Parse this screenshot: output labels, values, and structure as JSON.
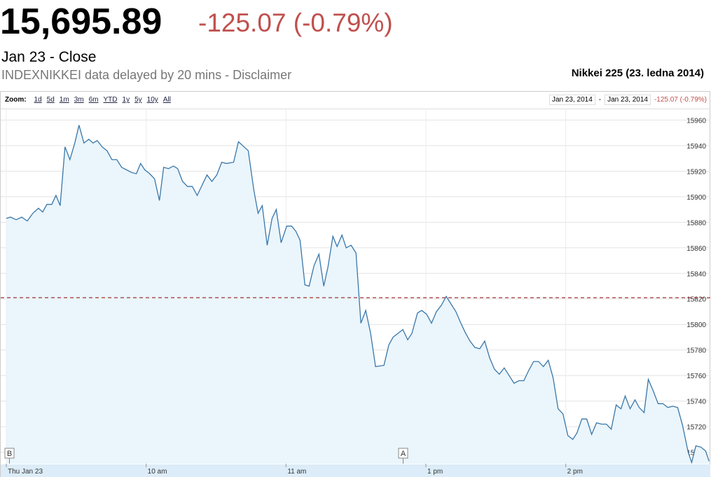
{
  "header": {
    "price": "15,695.89",
    "change": "-125.07 (-0.79%)",
    "date": "Jan 23 - Close",
    "source": "INDEXNIKKEI data delayed by 20 mins - Disclaimer",
    "chart_name": "Nikkei 225 (23. ledna 2014)"
  },
  "toolbar": {
    "zoom_label": "Zoom:",
    "zoom_options": [
      "1d",
      "5d",
      "1m",
      "3m",
      "6m",
      "YTD",
      "1y",
      "5y",
      "10y",
      "All"
    ],
    "range_start": "Jan 23, 2014",
    "range_separator": "-",
    "range_end": "Jan 23, 2014",
    "range_change": "-125.07 (-0.79%)"
  },
  "chart_data": {
    "type": "line",
    "color": "#3a77a8",
    "fill": "#eaf5fc",
    "grid": true,
    "annotations": [
      "B",
      "A"
    ],
    "reference_line": 15820.96,
    "reference_color": "#a03030",
    "xlim": [
      -2.4,
      302
    ],
    "ylim": [
      15691,
      15969
    ],
    "xticks": [
      {
        "value": 0,
        "label": "Thu Jan 23"
      },
      {
        "value": 60,
        "label": "10 am"
      },
      {
        "value": 120,
        "label": "11 am"
      },
      {
        "value": 180,
        "label": "1 pm"
      },
      {
        "value": 240,
        "label": "2 pm"
      }
    ],
    "yticks": [
      15700,
      15720,
      15740,
      15760,
      15780,
      15800,
      15820,
      15840,
      15860,
      15880,
      15900,
      15920,
      15940,
      15960
    ],
    "x": [
      0,
      1.8,
      4.2,
      6.6,
      9,
      11.4,
      13.8,
      15.6,
      17.4,
      19.5,
      21.3,
      23.1,
      25.2,
      27.3,
      29.4,
      31.2,
      33.3,
      35.4,
      37.2,
      39,
      41.1,
      43.2,
      45.3,
      47.4,
      49.5,
      51.6,
      53.7,
      55.8,
      57.6,
      59.4,
      61.5,
      63.6,
      65.7,
      67.5,
      69.6,
      71.7,
      73.5,
      75.6,
      77.7,
      79.8,
      81.9,
      84,
      86.1,
      88.2,
      90.3,
      92.4,
      94.5,
      97.5,
      99.6,
      102,
      103.8,
      106.2,
      108,
      109.8,
      111.9,
      114,
      115.8,
      117.9,
      120.3,
      122.4,
      124.2,
      126,
      128.1,
      129.9,
      132,
      134.1,
      136.2,
      138,
      140.1,
      141.9,
      144,
      145.8,
      147.9,
      150,
      152.1,
      154.2,
      156.3,
      158.4,
      162,
      164.1,
      165.9,
      168,
      170.1,
      172.2,
      174,
      176.4,
      178.2,
      180.3,
      182.4,
      184.5,
      186.6,
      188.7,
      190.8,
      192.9,
      195,
      196.8,
      198.9,
      201,
      203.1,
      205.2,
      207.3,
      209.4,
      211.5,
      213.6,
      215.7,
      217.8,
      219.9,
      222,
      224.1,
      226.2,
      228.3,
      230.4,
      232.5,
      234.6,
      236.7,
      238.8,
      240.9,
      243,
      244.8,
      246.9,
      249,
      251.1,
      253.2,
      255.3,
      257.4,
      259.5,
      261.6,
      263.7,
      265.5,
      267.6,
      269.7,
      271.5,
      273.6,
      275.4,
      277.5,
      279.6,
      281.7,
      283.8,
      285.9,
      288,
      290.1,
      292.5,
      294,
      295.8,
      297.9,
      300,
      301.5
    ],
    "values": [
      15883,
      15884,
      15882,
      15884,
      15881,
      15887,
      15891,
      15888,
      15894,
      15894,
      15901,
      15893,
      15939,
      15929,
      15942,
      15956,
      15942,
      15945,
      15942,
      15944,
      15939,
      15936,
      15929,
      15929,
      15923,
      15921,
      15919,
      15918,
      15926,
      15921,
      15918,
      15914,
      15897,
      15923,
      15922,
      15924,
      15922,
      15912,
      15908,
      15908,
      15901,
      15909,
      15917,
      15912,
      15917,
      15927,
      15926,
      15927,
      15943,
      15939,
      15936,
      15905,
      15887,
      15893,
      15862,
      15883,
      15890,
      15864,
      15877,
      15877,
      15873,
      15866,
      15831,
      15830,
      15846,
      15855,
      15830,
      15845,
      15869,
      15861,
      15870,
      15860,
      15862,
      15856,
      15801,
      15811,
      15793,
      15767,
      15768,
      15784,
      15790,
      15793,
      15796,
      15788,
      15793,
      15809,
      15811,
      15808,
      15801,
      15810,
      15815,
      15822,
      15816,
      15810,
      15801,
      15794,
      15787,
      15782,
      15781,
      15787,
      15774,
      15765,
      15761,
      15766,
      15760,
      15754,
      15756,
      15756,
      15764,
      15771,
      15771,
      15767,
      15772,
      15758,
      15734,
      15730,
      15713,
      15710,
      15715,
      15726,
      15726,
      15714,
      15723,
      15722,
      15722,
      15718,
      15737,
      15734,
      15744,
      15734,
      15741,
      15735,
      15731,
      15757,
      15748,
      15738,
      15738,
      15735,
      15736,
      15735,
      15721,
      15700,
      15692,
      15705,
      15704,
      15701,
      15693
    ]
  }
}
